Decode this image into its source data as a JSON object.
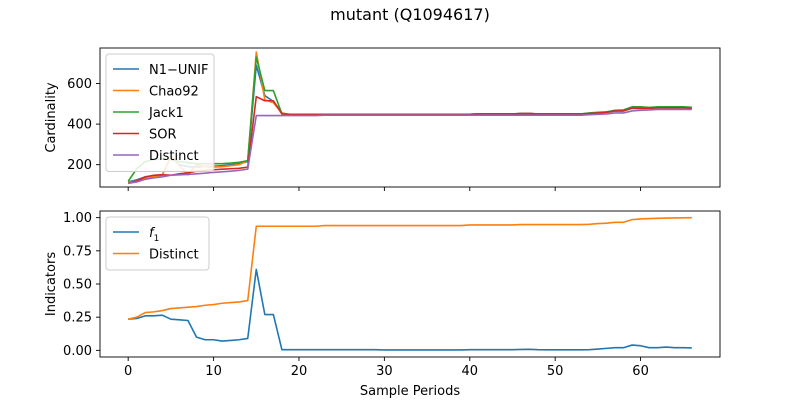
{
  "figure": {
    "title": "mutant (Q1094617)"
  },
  "colors": {
    "blue": "#1f77b4",
    "orange": "#ff7f0e",
    "green": "#2ca02c",
    "red": "#d62728",
    "purple": "#9467bd"
  },
  "chart_data": [
    {
      "type": "line",
      "title": "",
      "xlabel": "",
      "ylabel": "Cardinality",
      "xlim": [
        -3.3,
        69.3
      ],
      "ylim": [
        90,
        775
      ],
      "xticks": [
        0,
        10,
        20,
        30,
        40,
        50,
        60
      ],
      "xtick_labels_shown": false,
      "yticks": [
        200,
        400,
        600
      ],
      "ytick_labels": [
        "200",
        "400",
        "600"
      ],
      "legend": {
        "placement": "top-left",
        "entries": [
          "N1−UNIF",
          "Chao92",
          "Jack1",
          "SOR",
          "Distinct"
        ]
      },
      "x": [
        0,
        1,
        2,
        3,
        4,
        5,
        6,
        7,
        8,
        9,
        10,
        11,
        12,
        13,
        14,
        15,
        16,
        17,
        18,
        19,
        20,
        21,
        22,
        23,
        24,
        25,
        26,
        27,
        28,
        29,
        30,
        31,
        32,
        33,
        34,
        35,
        36,
        37,
        38,
        39,
        40,
        41,
        42,
        43,
        44,
        45,
        46,
        47,
        48,
        49,
        50,
        51,
        52,
        53,
        54,
        55,
        56,
        57,
        58,
        59,
        60,
        61,
        62,
        63,
        64,
        65,
        66
      ],
      "series": [
        {
          "name": "N1−UNIF",
          "color": "#1f77b4",
          "values": [
            115,
            125,
            140,
            145,
            150,
            240,
            200,
            190,
            188,
            192,
            192,
            195,
            200,
            205,
            215,
            690,
            540,
            512,
            455,
            445,
            445,
            445,
            445,
            448,
            448,
            448,
            448,
            448,
            448,
            448,
            448,
            448,
            448,
            448,
            448,
            448,
            448,
            448,
            448,
            448,
            448,
            450,
            450,
            450,
            450,
            450,
            452,
            452,
            450,
            450,
            450,
            450,
            450,
            450,
            452,
            455,
            460,
            465,
            465,
            478,
            478,
            478,
            480,
            480,
            480,
            480,
            478
          ]
        },
        {
          "name": "Chao92",
          "color": "#ff7f0e",
          "values": [
            112,
            120,
            135,
            140,
            148,
            245,
            195,
            150,
            200,
            190,
            188,
            190,
            195,
            200,
            220,
            755,
            520,
            505,
            455,
            445,
            445,
            445,
            445,
            448,
            448,
            448,
            448,
            448,
            448,
            448,
            448,
            448,
            448,
            448,
            448,
            448,
            448,
            448,
            448,
            448,
            448,
            450,
            450,
            450,
            450,
            450,
            452,
            452,
            450,
            450,
            450,
            450,
            450,
            450,
            452,
            455,
            458,
            465,
            468,
            480,
            482,
            480,
            482,
            482,
            482,
            482,
            480
          ]
        },
        {
          "name": "Jack1",
          "color": "#2ca02c",
          "values": [
            118,
            180,
            215,
            225,
            230,
            225,
            215,
            210,
            205,
            205,
            205,
            205,
            208,
            212,
            220,
            730,
            565,
            565,
            450,
            448,
            448,
            448,
            448,
            448,
            448,
            448,
            448,
            448,
            448,
            448,
            448,
            448,
            448,
            448,
            448,
            448,
            448,
            448,
            448,
            448,
            448,
            450,
            450,
            450,
            450,
            450,
            452,
            452,
            450,
            450,
            450,
            450,
            450,
            450,
            455,
            458,
            460,
            468,
            470,
            485,
            485,
            482,
            485,
            485,
            485,
            485,
            483
          ]
        },
        {
          "name": "SOR",
          "color": "#d62728",
          "values": [
            108,
            120,
            140,
            148,
            150,
            148,
            155,
            160,
            168,
            172,
            175,
            178,
            180,
            182,
            188,
            535,
            515,
            515,
            450,
            448,
            448,
            448,
            448,
            448,
            448,
            448,
            448,
            448,
            448,
            448,
            448,
            448,
            448,
            448,
            448,
            448,
            448,
            448,
            448,
            448,
            448,
            450,
            450,
            450,
            450,
            450,
            452,
            452,
            450,
            450,
            450,
            450,
            450,
            450,
            452,
            455,
            458,
            465,
            465,
            478,
            478,
            478,
            480,
            480,
            480,
            480,
            478
          ]
        },
        {
          "name": "Distinct",
          "color": "#9467bd",
          "values": [
            108,
            115,
            128,
            135,
            140,
            148,
            150,
            152,
            155,
            158,
            162,
            165,
            168,
            172,
            178,
            442,
            442,
            442,
            442,
            442,
            442,
            442,
            442,
            444,
            444,
            444,
            444,
            444,
            444,
            444,
            444,
            444,
            444,
            444,
            444,
            444,
            444,
            444,
            444,
            444,
            444,
            444,
            444,
            444,
            444,
            444,
            444,
            444,
            444,
            444,
            444,
            444,
            444,
            444,
            446,
            448,
            450,
            455,
            455,
            465,
            468,
            470,
            472,
            472,
            472,
            472,
            472
          ]
        }
      ]
    },
    {
      "type": "line",
      "title": "",
      "xlabel": "Sample Periods",
      "ylabel": "Indicators",
      "xlim": [
        -3.3,
        69.3
      ],
      "ylim": [
        -0.05,
        1.05
      ],
      "xticks": [
        0,
        10,
        20,
        30,
        40,
        50,
        60
      ],
      "xtick_labels": [
        "0",
        "10",
        "20",
        "30",
        "40",
        "50",
        "60"
      ],
      "yticks": [
        0.0,
        0.25,
        0.5,
        0.75,
        1.0
      ],
      "ytick_labels": [
        "0.00",
        "0.25",
        "0.50",
        "0.75",
        "1.00"
      ],
      "legend": {
        "placement": "top-left",
        "entries": [
          "f1",
          "Distinct"
        ]
      },
      "x": [
        0,
        1,
        2,
        3,
        4,
        5,
        6,
        7,
        8,
        9,
        10,
        11,
        12,
        13,
        14,
        15,
        16,
        17,
        18,
        19,
        20,
        21,
        22,
        23,
        24,
        25,
        26,
        27,
        28,
        29,
        30,
        31,
        32,
        33,
        34,
        35,
        36,
        37,
        38,
        39,
        40,
        41,
        42,
        43,
        44,
        45,
        46,
        47,
        48,
        49,
        50,
        51,
        52,
        53,
        54,
        55,
        56,
        57,
        58,
        59,
        60,
        61,
        62,
        63,
        64,
        65,
        66
      ],
      "series": [
        {
          "name": "f1",
          "label_main": "f",
          "label_sub": "1",
          "color": "#1f77b4",
          "values": [
            0.235,
            0.24,
            0.26,
            0.26,
            0.265,
            0.235,
            0.23,
            0.225,
            0.1,
            0.08,
            0.08,
            0.07,
            0.075,
            0.08,
            0.09,
            0.61,
            0.27,
            0.27,
            0.005,
            0.005,
            0.005,
            0.005,
            0.005,
            0.005,
            0.005,
            0.005,
            0.005,
            0.005,
            0.005,
            0.005,
            0.003,
            0.003,
            0.003,
            0.003,
            0.003,
            0.003,
            0.003,
            0.003,
            0.003,
            0.003,
            0.005,
            0.005,
            0.005,
            0.005,
            0.005,
            0.005,
            0.007,
            0.008,
            0.005,
            0.004,
            0.004,
            0.004,
            0.004,
            0.004,
            0.005,
            0.01,
            0.015,
            0.02,
            0.02,
            0.04,
            0.035,
            0.02,
            0.02,
            0.025,
            0.02,
            0.02,
            0.018
          ]
        },
        {
          "name": "Distinct",
          "color": "#ff7f0e",
          "values": [
            0.235,
            0.25,
            0.285,
            0.29,
            0.3,
            0.315,
            0.32,
            0.325,
            0.33,
            0.34,
            0.345,
            0.355,
            0.36,
            0.365,
            0.375,
            0.935,
            0.935,
            0.935,
            0.935,
            0.935,
            0.935,
            0.935,
            0.935,
            0.94,
            0.94,
            0.94,
            0.94,
            0.94,
            0.94,
            0.94,
            0.94,
            0.94,
            0.94,
            0.94,
            0.94,
            0.94,
            0.94,
            0.94,
            0.94,
            0.94,
            0.945,
            0.945,
            0.945,
            0.945,
            0.945,
            0.945,
            0.948,
            0.948,
            0.948,
            0.948,
            0.948,
            0.948,
            0.948,
            0.948,
            0.95,
            0.955,
            0.958,
            0.965,
            0.965,
            0.985,
            0.99,
            0.993,
            0.995,
            0.997,
            0.998,
            0.999,
            1.0
          ]
        }
      ]
    }
  ]
}
